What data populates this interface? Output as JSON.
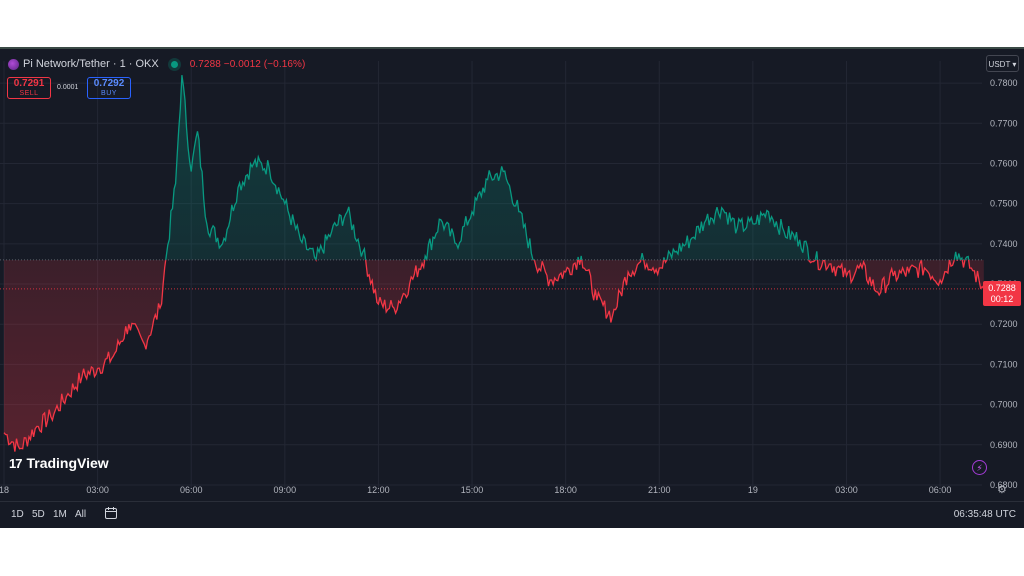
{
  "header": {
    "symbol": "Pi Network/Tether · 1 · OKX",
    "ohlc_summary": "0.7288  −0.0012 (−0.16%)"
  },
  "trade": {
    "sell_price": "0.7291",
    "sell_label": "SELL",
    "spread": "0.0001",
    "buy_price": "0.7292",
    "buy_label": "BUY"
  },
  "currency_button": "USDT",
  "brand": "TradingView",
  "bottom": {
    "ranges": [
      "1D",
      "5D",
      "1M",
      "All"
    ],
    "clock": "06:35:48 UTC"
  },
  "price_tag": {
    "price": "0.7288",
    "countdown": "00:12"
  },
  "colors": {
    "up": "#089981",
    "down": "#f23645",
    "background": "#161a25",
    "grid": "#232734",
    "text": "#b2b5be"
  },
  "chart_data": {
    "type": "line",
    "series": [
      {
        "x_hours": [
          0,
          0.5,
          1,
          1.5,
          2,
          2.5,
          3,
          3.5,
          4,
          4.5,
          5,
          5.2,
          5.5,
          5.7,
          6,
          6.2,
          6.5,
          7,
          7.5,
          8,
          8.5,
          9,
          9.5,
          10,
          10.5,
          11,
          11.5,
          12,
          12.5,
          13,
          13.5,
          14,
          14.5,
          15,
          15.5,
          16,
          16.5,
          17,
          17.5,
          18,
          18.5,
          19,
          19.5,
          20,
          20.5,
          21,
          21.5,
          22,
          22.5,
          23,
          23.5,
          24,
          24.5,
          25,
          25.5,
          26,
          26.5,
          27,
          27.5,
          28,
          28.5,
          29,
          29.5,
          30,
          30.5,
          31,
          31.4
        ],
        "values": [
          0.693,
          0.689,
          0.694,
          0.697,
          0.702,
          0.707,
          0.709,
          0.712,
          0.72,
          0.715,
          0.724,
          0.737,
          0.755,
          0.782,
          0.758,
          0.768,
          0.745,
          0.74,
          0.754,
          0.76,
          0.759,
          0.75,
          0.741,
          0.736,
          0.743,
          0.748,
          0.738,
          0.725,
          0.724,
          0.73,
          0.737,
          0.746,
          0.74,
          0.748,
          0.756,
          0.758,
          0.748,
          0.736,
          0.731,
          0.733,
          0.737,
          0.726,
          0.722,
          0.733,
          0.736,
          0.734,
          0.738,
          0.741,
          0.746,
          0.749,
          0.744,
          0.745,
          0.748,
          0.743,
          0.741,
          0.736,
          0.735,
          0.732,
          0.734,
          0.728,
          0.732,
          0.733,
          0.734,
          0.731,
          0.738,
          0.734,
          0.7288
        ]
      }
    ],
    "baseline": 0.736,
    "current_price": 0.7288,
    "ylim": [
      0.6785,
      0.7855
    ],
    "y_ticks": [
      "0.7800",
      "0.7700",
      "0.7600",
      "0.7500",
      "0.7400",
      "0.7300",
      "0.7200",
      "0.7100",
      "0.7000",
      "0.6900",
      "0.6800"
    ],
    "y_tick_values": [
      0.78,
      0.77,
      0.76,
      0.75,
      0.74,
      0.73,
      0.72,
      0.71,
      0.7,
      0.69,
      0.68
    ],
    "xlim_hours": [
      0,
      31.6
    ],
    "x_tick_labels": [
      "18",
      "03:00",
      "06:00",
      "09:00",
      "12:00",
      "15:00",
      "18:00",
      "21:00",
      "19",
      "03:00",
      "06:00"
    ],
    "x_tick_hours": [
      0,
      3,
      6,
      9,
      12,
      15,
      18,
      21,
      24,
      27,
      30
    ],
    "grid": true
  }
}
